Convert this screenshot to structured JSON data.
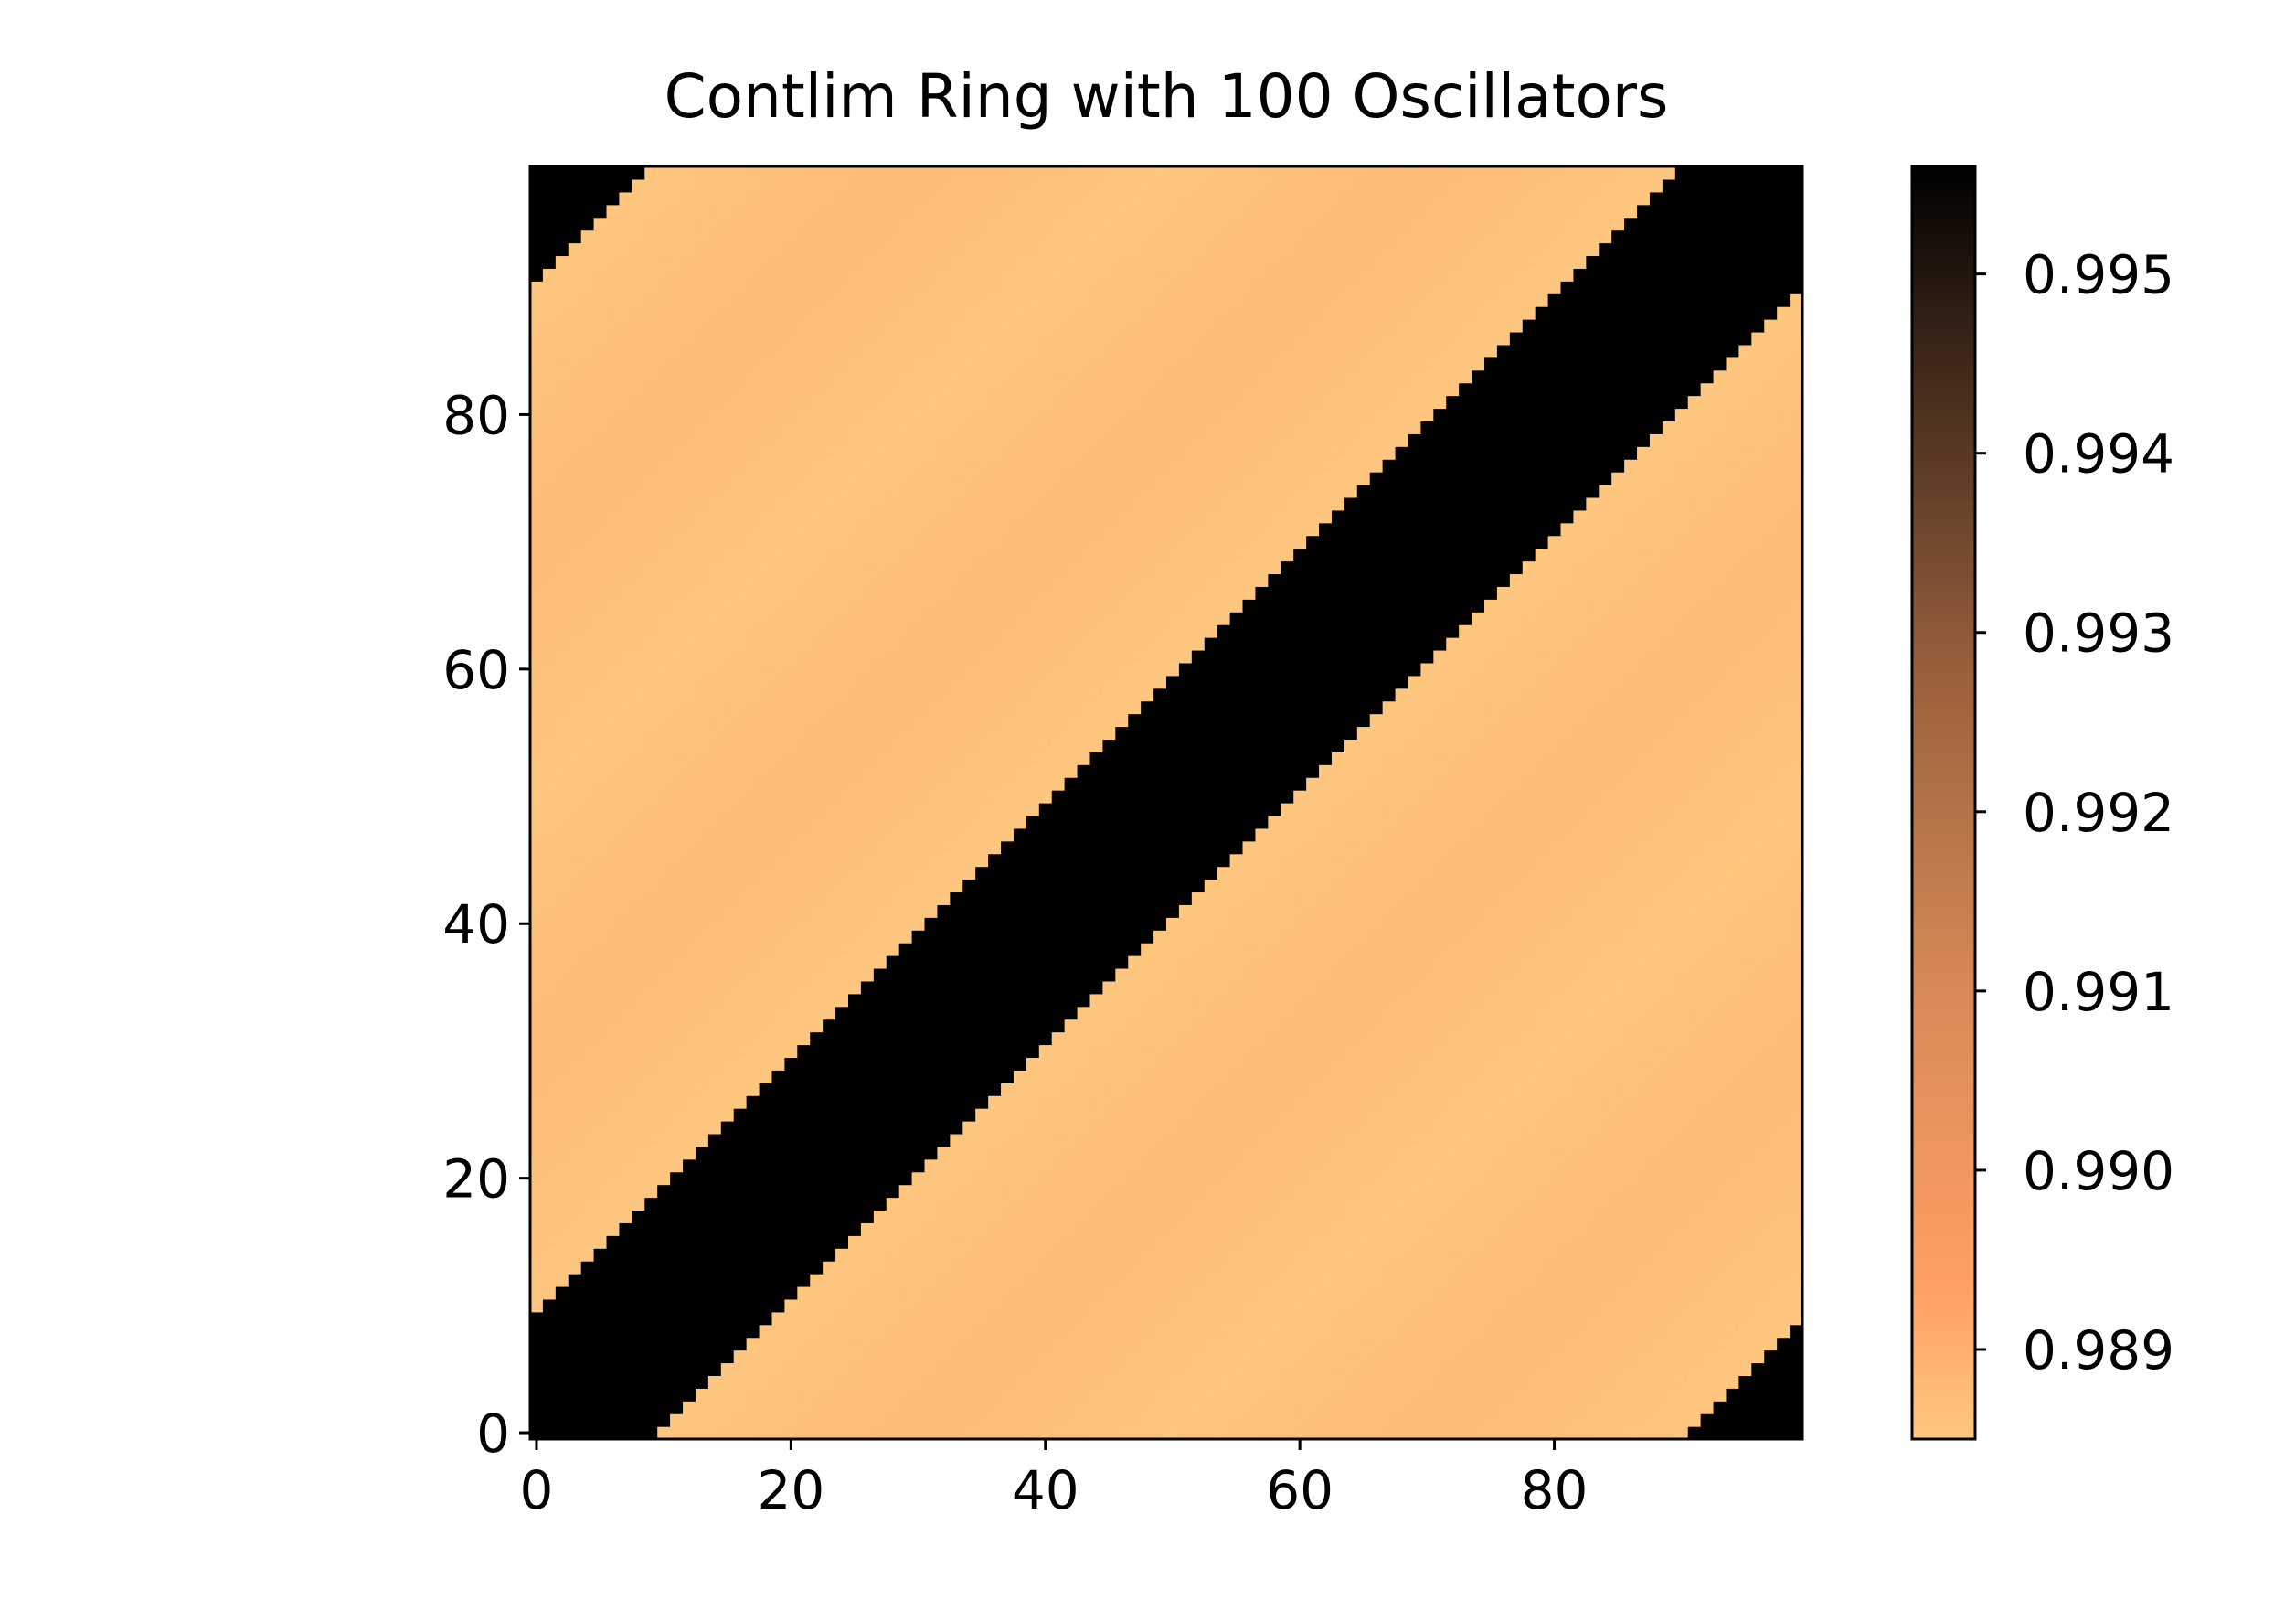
{
  "chart_data": {
    "type": "heatmap",
    "title": "Contlim Ring with 100 Oscillators",
    "xlabel": "",
    "ylabel": "",
    "n": 100,
    "xlim": [
      -0.5,
      99.5
    ],
    "ylim": [
      -0.5,
      99.5
    ],
    "origin": "lower",
    "x_ticks": [
      0,
      20,
      40,
      60,
      80
    ],
    "y_ticks": [
      0,
      20,
      40,
      60,
      80
    ],
    "x_tick_labels": [
      "0",
      "20",
      "40",
      "60",
      "80"
    ],
    "y_tick_labels": [
      "0",
      "20",
      "40",
      "60",
      "80"
    ],
    "description_of_values": "Ring distance d = min(|i-j|, 100-|i-j|); cells with d <= 9 are at the colorbar maximum (black); other cells are near 0.9887 (light orange).",
    "band_halfwidth": 9,
    "value_band": 0.9956,
    "value_background_min": 0.98865,
    "value_background_max": 0.9892,
    "colormap": "copper_r",
    "colorbar": {
      "vmin": 0.9885,
      "vmax": 0.9956,
      "ticks": [
        0.989,
        0.99,
        0.991,
        0.992,
        0.993,
        0.994,
        0.995
      ],
      "tick_labels": [
        "0.989",
        "0.990",
        "0.991",
        "0.992",
        "0.993",
        "0.994",
        "0.995"
      ]
    },
    "grid": false,
    "legend": "none"
  },
  "colors": {
    "band": "#000000",
    "background_light": "#ffc77f",
    "background_dark": "#febb78",
    "cmap_low": "#ffc77f",
    "cmap_high": "#000000"
  }
}
